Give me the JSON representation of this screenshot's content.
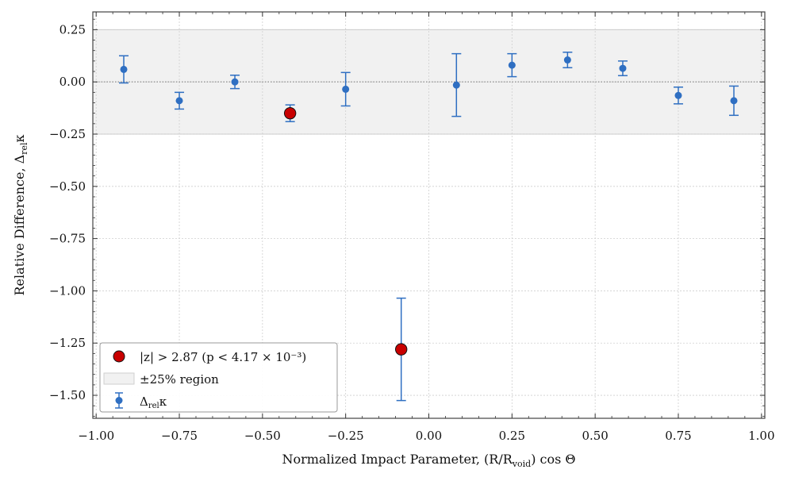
{
  "chart_data": {
    "type": "scatter",
    "xlabel": "Normalized Impact Parameter, (R/R",
    "xlabel_sub": "void",
    "xlabel_tail": ") cos Θ",
    "ylabel": "Relative Difference, Δ",
    "ylabel_sub": "rel",
    "ylabel_tail": "κ",
    "xlim": [
      -1.01,
      1.01
    ],
    "ylim": [
      -1.61,
      0.335
    ],
    "xticks": [
      -1.0,
      -0.75,
      -0.5,
      -0.25,
      0.0,
      0.25,
      0.5,
      0.75,
      1.0
    ],
    "xtick_labels": [
      "−1.00",
      "−0.75",
      "−0.50",
      "−0.25",
      "0.00",
      "0.25",
      "0.50",
      "0.75",
      "1.00"
    ],
    "yticks": [
      0.25,
      0.0,
      -0.25,
      -0.5,
      -0.75,
      -1.0,
      -1.25,
      -1.5
    ],
    "ytick_labels": [
      "0.25",
      "0.00",
      "−0.25",
      "−0.50",
      "−0.75",
      "−1.00",
      "−1.25",
      "−1.50"
    ],
    "grid": true,
    "band": {
      "low": -0.25,
      "high": 0.25,
      "label": "±25% region"
    },
    "zero_line": 0.0,
    "series": [
      {
        "name": "Δrelκ",
        "color": "#2f6fc2",
        "x": [
          -0.917,
          -0.75,
          -0.583,
          -0.417,
          -0.25,
          -0.083,
          0.083,
          0.25,
          0.417,
          0.583,
          0.75,
          0.917
        ],
        "y": [
          0.06,
          -0.09,
          0.0,
          -0.15,
          -0.035,
          -1.28,
          -0.015,
          0.08,
          0.105,
          0.065,
          -0.065,
          -0.09
        ],
        "yerr": [
          0.065,
          0.04,
          0.032,
          0.04,
          0.08,
          0.245,
          0.15,
          0.055,
          0.037,
          0.035,
          0.04,
          0.07
        ]
      }
    ],
    "highlight": {
      "name": "|z| > 2.87 (p < 4.17 × 10⁻³)",
      "color": "#c80000",
      "x": [
        -0.417,
        -0.083
      ],
      "y": [
        -0.15,
        -1.28
      ]
    },
    "legend": {
      "position": "lower-left",
      "entries": [
        "|z| > 2.87 (p < 4.17 × 10⁻³)",
        "±25% region",
        "Δrelκ"
      ]
    }
  }
}
